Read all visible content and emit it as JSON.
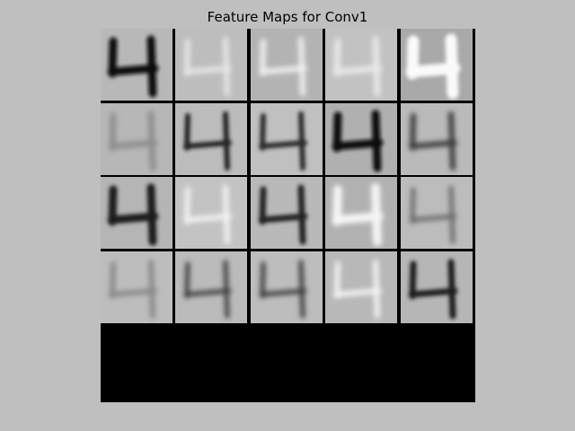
{
  "figure": {
    "title": "Feature Maps for Conv1"
  },
  "grid": {
    "columns": 5,
    "rows": 5,
    "filled_rows": 4,
    "tiles": [
      {
        "bg": "#b8b8b8",
        "stroke": "#111111",
        "thick": 9,
        "blur": 2
      },
      {
        "bg": "#bdbdbd",
        "stroke": "#e6e6e6",
        "thick": 6,
        "blur": 3
      },
      {
        "bg": "#b3b3b3",
        "stroke": "#f0f0f0",
        "thick": 6,
        "blur": 3
      },
      {
        "bg": "#c2c2c2",
        "stroke": "#e8e8e8",
        "thick": 7,
        "blur": 3
      },
      {
        "bg": "#a9a9a9",
        "stroke": "#fafafa",
        "thick": 13,
        "blur": 2
      },
      {
        "bg": "#b7b7b7",
        "stroke": "#8f8f8f",
        "thick": 7,
        "blur": 3
      },
      {
        "bg": "#bcbcbc",
        "stroke": "#202020",
        "thick": 6,
        "blur": 2
      },
      {
        "bg": "#c0c0c0",
        "stroke": "#2a2a2a",
        "thick": 6,
        "blur": 2
      },
      {
        "bg": "#b0b0b0",
        "stroke": "#0a0a0a",
        "thick": 9,
        "blur": 2
      },
      {
        "bg": "#bababa",
        "stroke": "#3a3a3a",
        "thick": 6,
        "blur": 3
      },
      {
        "bg": "#b5b5b5",
        "stroke": "#1c1c1c",
        "thick": 9,
        "blur": 2
      },
      {
        "bg": "#c3c3c3",
        "stroke": "#f2f2f2",
        "thick": 6,
        "blur": 3
      },
      {
        "bg": "#b9b9b9",
        "stroke": "#222222",
        "thick": 7,
        "blur": 2
      },
      {
        "bg": "#b1b1b1",
        "stroke": "#f5f5f5",
        "thick": 10,
        "blur": 3
      },
      {
        "bg": "#bcbcbc",
        "stroke": "#6a6a6a",
        "thick": 5,
        "blur": 3
      },
      {
        "bg": "#bdbdbd",
        "stroke": "#8a8a8a",
        "thick": 6,
        "blur": 3
      },
      {
        "bg": "#bbbbbb",
        "stroke": "#3c3c3c",
        "thick": 5,
        "blur": 3
      },
      {
        "bg": "#bdbdbd",
        "stroke": "#3a3a3a",
        "thick": 5,
        "blur": 3
      },
      {
        "bg": "#b8b8b8",
        "stroke": "#f3f3f3",
        "thick": 6,
        "blur": 3
      },
      {
        "bg": "#b6b6b6",
        "stroke": "#1e1e1e",
        "thick": 7,
        "blur": 2
      }
    ]
  }
}
